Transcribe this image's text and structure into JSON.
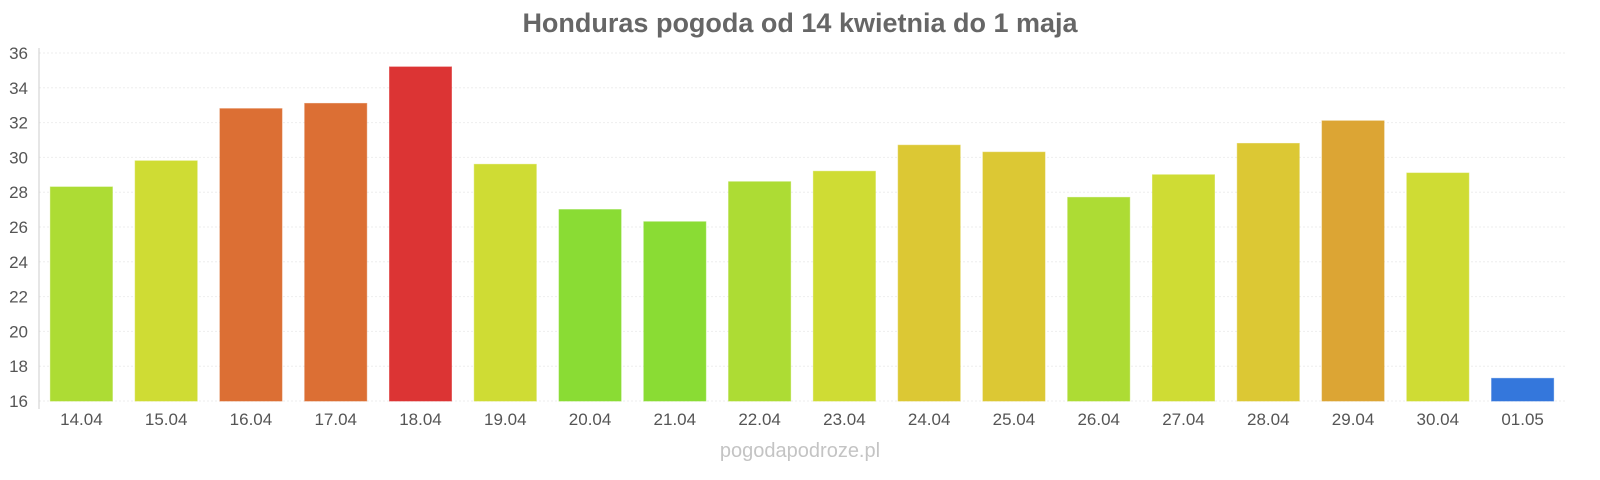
{
  "chart_data": {
    "type": "bar",
    "title": "Honduras pogoda od 14 kwietnia do 1 maja",
    "xlabel": "",
    "ylabel": "",
    "ylim": [
      16,
      36
    ],
    "yticks": [
      16,
      18,
      20,
      22,
      24,
      26,
      28,
      30,
      32,
      34,
      36
    ],
    "grid": true,
    "categories": [
      "14.04",
      "15.04",
      "16.04",
      "17.04",
      "18.04",
      "19.04",
      "20.04",
      "21.04",
      "22.04",
      "23.04",
      "24.04",
      "25.04",
      "26.04",
      "27.04",
      "28.04",
      "29.04",
      "30.04",
      "01.05"
    ],
    "values": [
      28.3,
      29.8,
      32.8,
      33.1,
      35.2,
      29.6,
      27.0,
      26.3,
      28.6,
      29.2,
      30.7,
      30.3,
      27.7,
      29.0,
      30.8,
      32.1,
      29.1,
      17.3
    ],
    "colors": [
      "#addc34",
      "#cfdc34",
      "#dc6f34",
      "#dc6f34",
      "#dc3434",
      "#cfdc34",
      "#8adc34",
      "#8adc34",
      "#addc34",
      "#cfdc34",
      "#dcc834",
      "#dcc834",
      "#addc34",
      "#cfdc34",
      "#dcc834",
      "#dca534",
      "#cfdc34",
      "#3477dc"
    ]
  },
  "footer": "pogodapodroze.pl"
}
